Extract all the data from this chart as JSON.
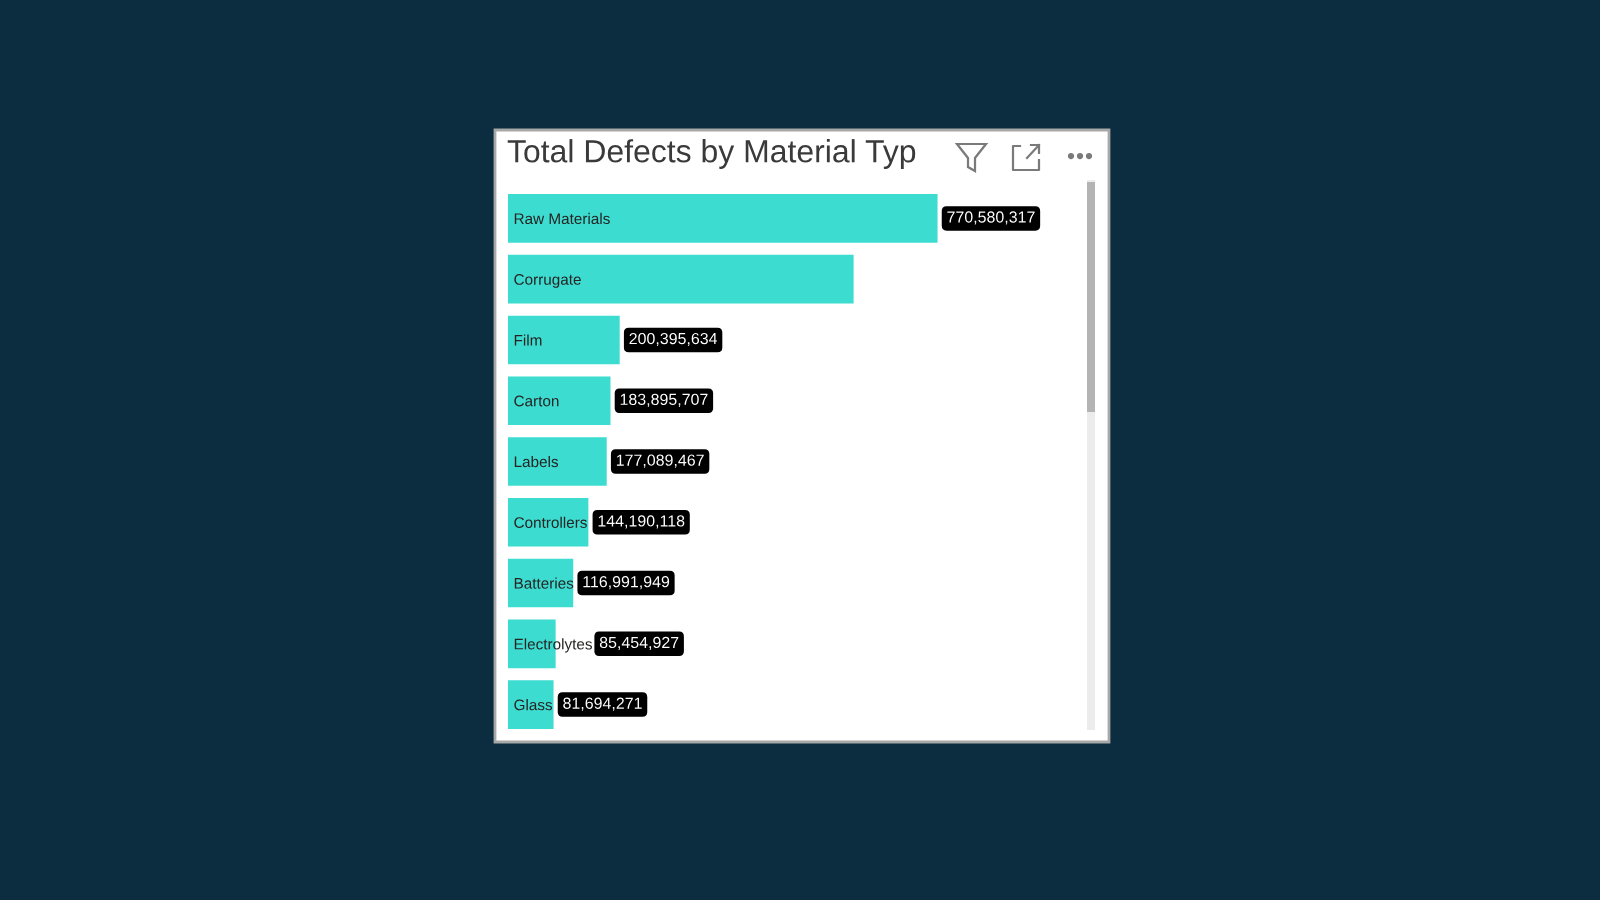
{
  "chart_data": {
    "type": "bar",
    "orientation": "horizontal",
    "title": "Total Defects by Material Typ",
    "categories": [
      "Raw Materials",
      "Corrugate",
      "Film",
      "Carton",
      "Labels",
      "Controllers",
      "Batteries",
      "Electrolytes",
      "Glass"
    ],
    "values": [
      770580317,
      620000000,
      200395634,
      183895707,
      177089467,
      144190118,
      116991949,
      85454927,
      81694271
    ],
    "value_labels": [
      "770,580,317",
      null,
      "200,395,634",
      "183,895,707",
      "177,089,467",
      "144,190,118",
      "116,991,949",
      "85,454,927",
      "81,694,271"
    ],
    "color": "#3ddcd0"
  }
}
